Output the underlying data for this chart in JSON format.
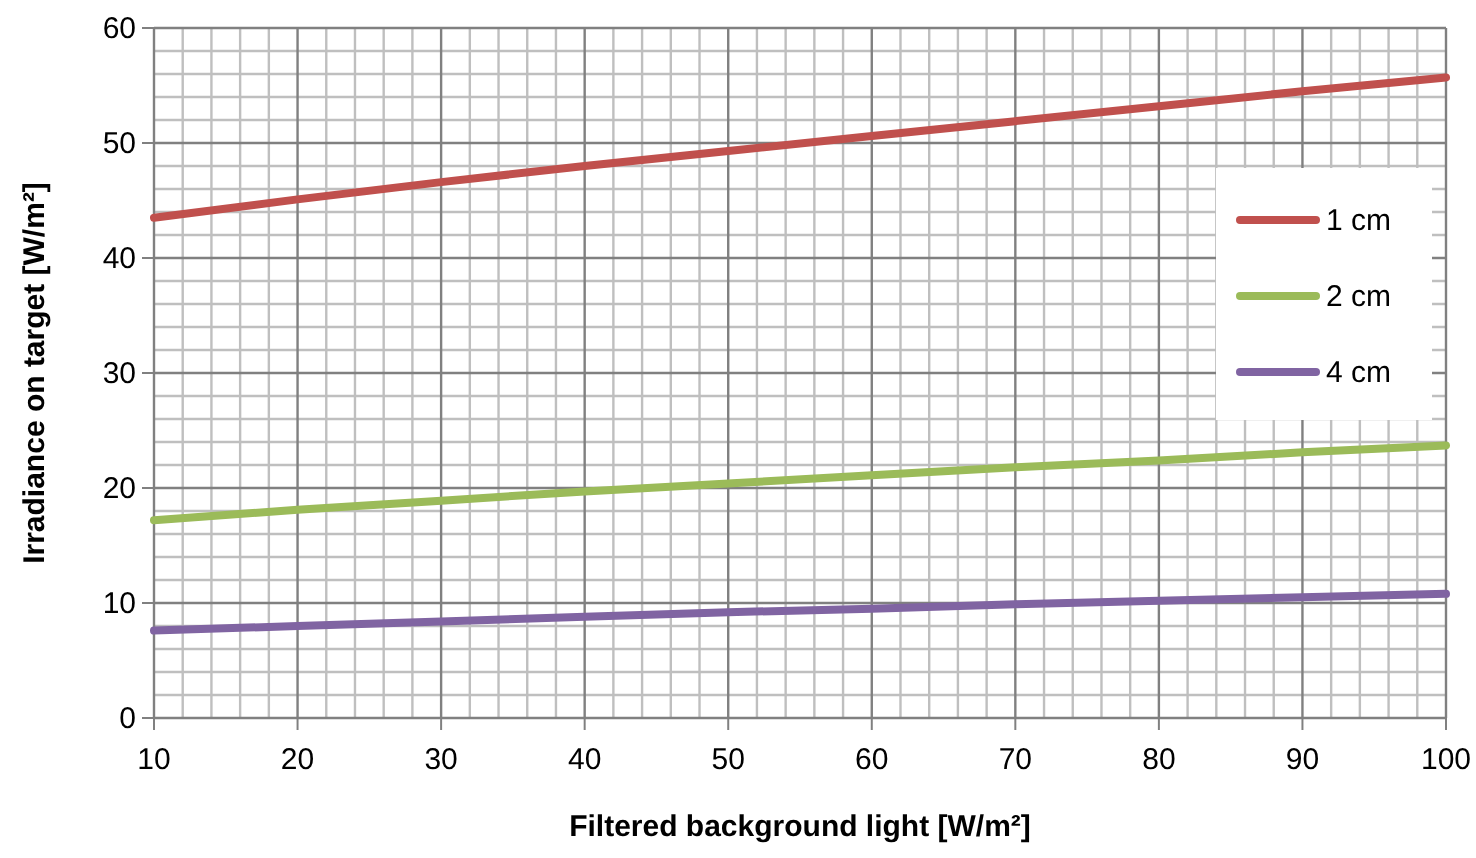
{
  "chart_data": {
    "type": "line",
    "xlabel": "Filtered background light [W/m²]",
    "ylabel": "Irradiance on target [W/m²]",
    "x": [
      10,
      20,
      30,
      40,
      50,
      60,
      70,
      80,
      90,
      100
    ],
    "series": [
      {
        "name": "1 cm",
        "color": "#c0504d",
        "values": [
          43.5,
          45.1,
          46.6,
          48.0,
          49.3,
          50.6,
          51.9,
          53.2,
          54.5,
          55.7
        ]
      },
      {
        "name": "2 cm",
        "color": "#9bbb59",
        "values": [
          17.2,
          18.1,
          18.9,
          19.7,
          20.4,
          21.1,
          21.8,
          22.4,
          23.1,
          23.7
        ]
      },
      {
        "name": "4 cm",
        "color": "#8064a2",
        "values": [
          7.6,
          8.0,
          8.4,
          8.8,
          9.2,
          9.5,
          9.9,
          10.2,
          10.5,
          10.8
        ]
      }
    ],
    "xlim": [
      10,
      100
    ],
    "xticks": [
      10,
      20,
      30,
      40,
      50,
      60,
      70,
      80,
      90,
      100
    ],
    "ylim": [
      0,
      60
    ],
    "yticks": [
      0,
      10,
      20,
      30,
      40,
      50,
      60
    ],
    "grid": true,
    "legend": "right",
    "marker": "none",
    "line_style": "solid"
  }
}
